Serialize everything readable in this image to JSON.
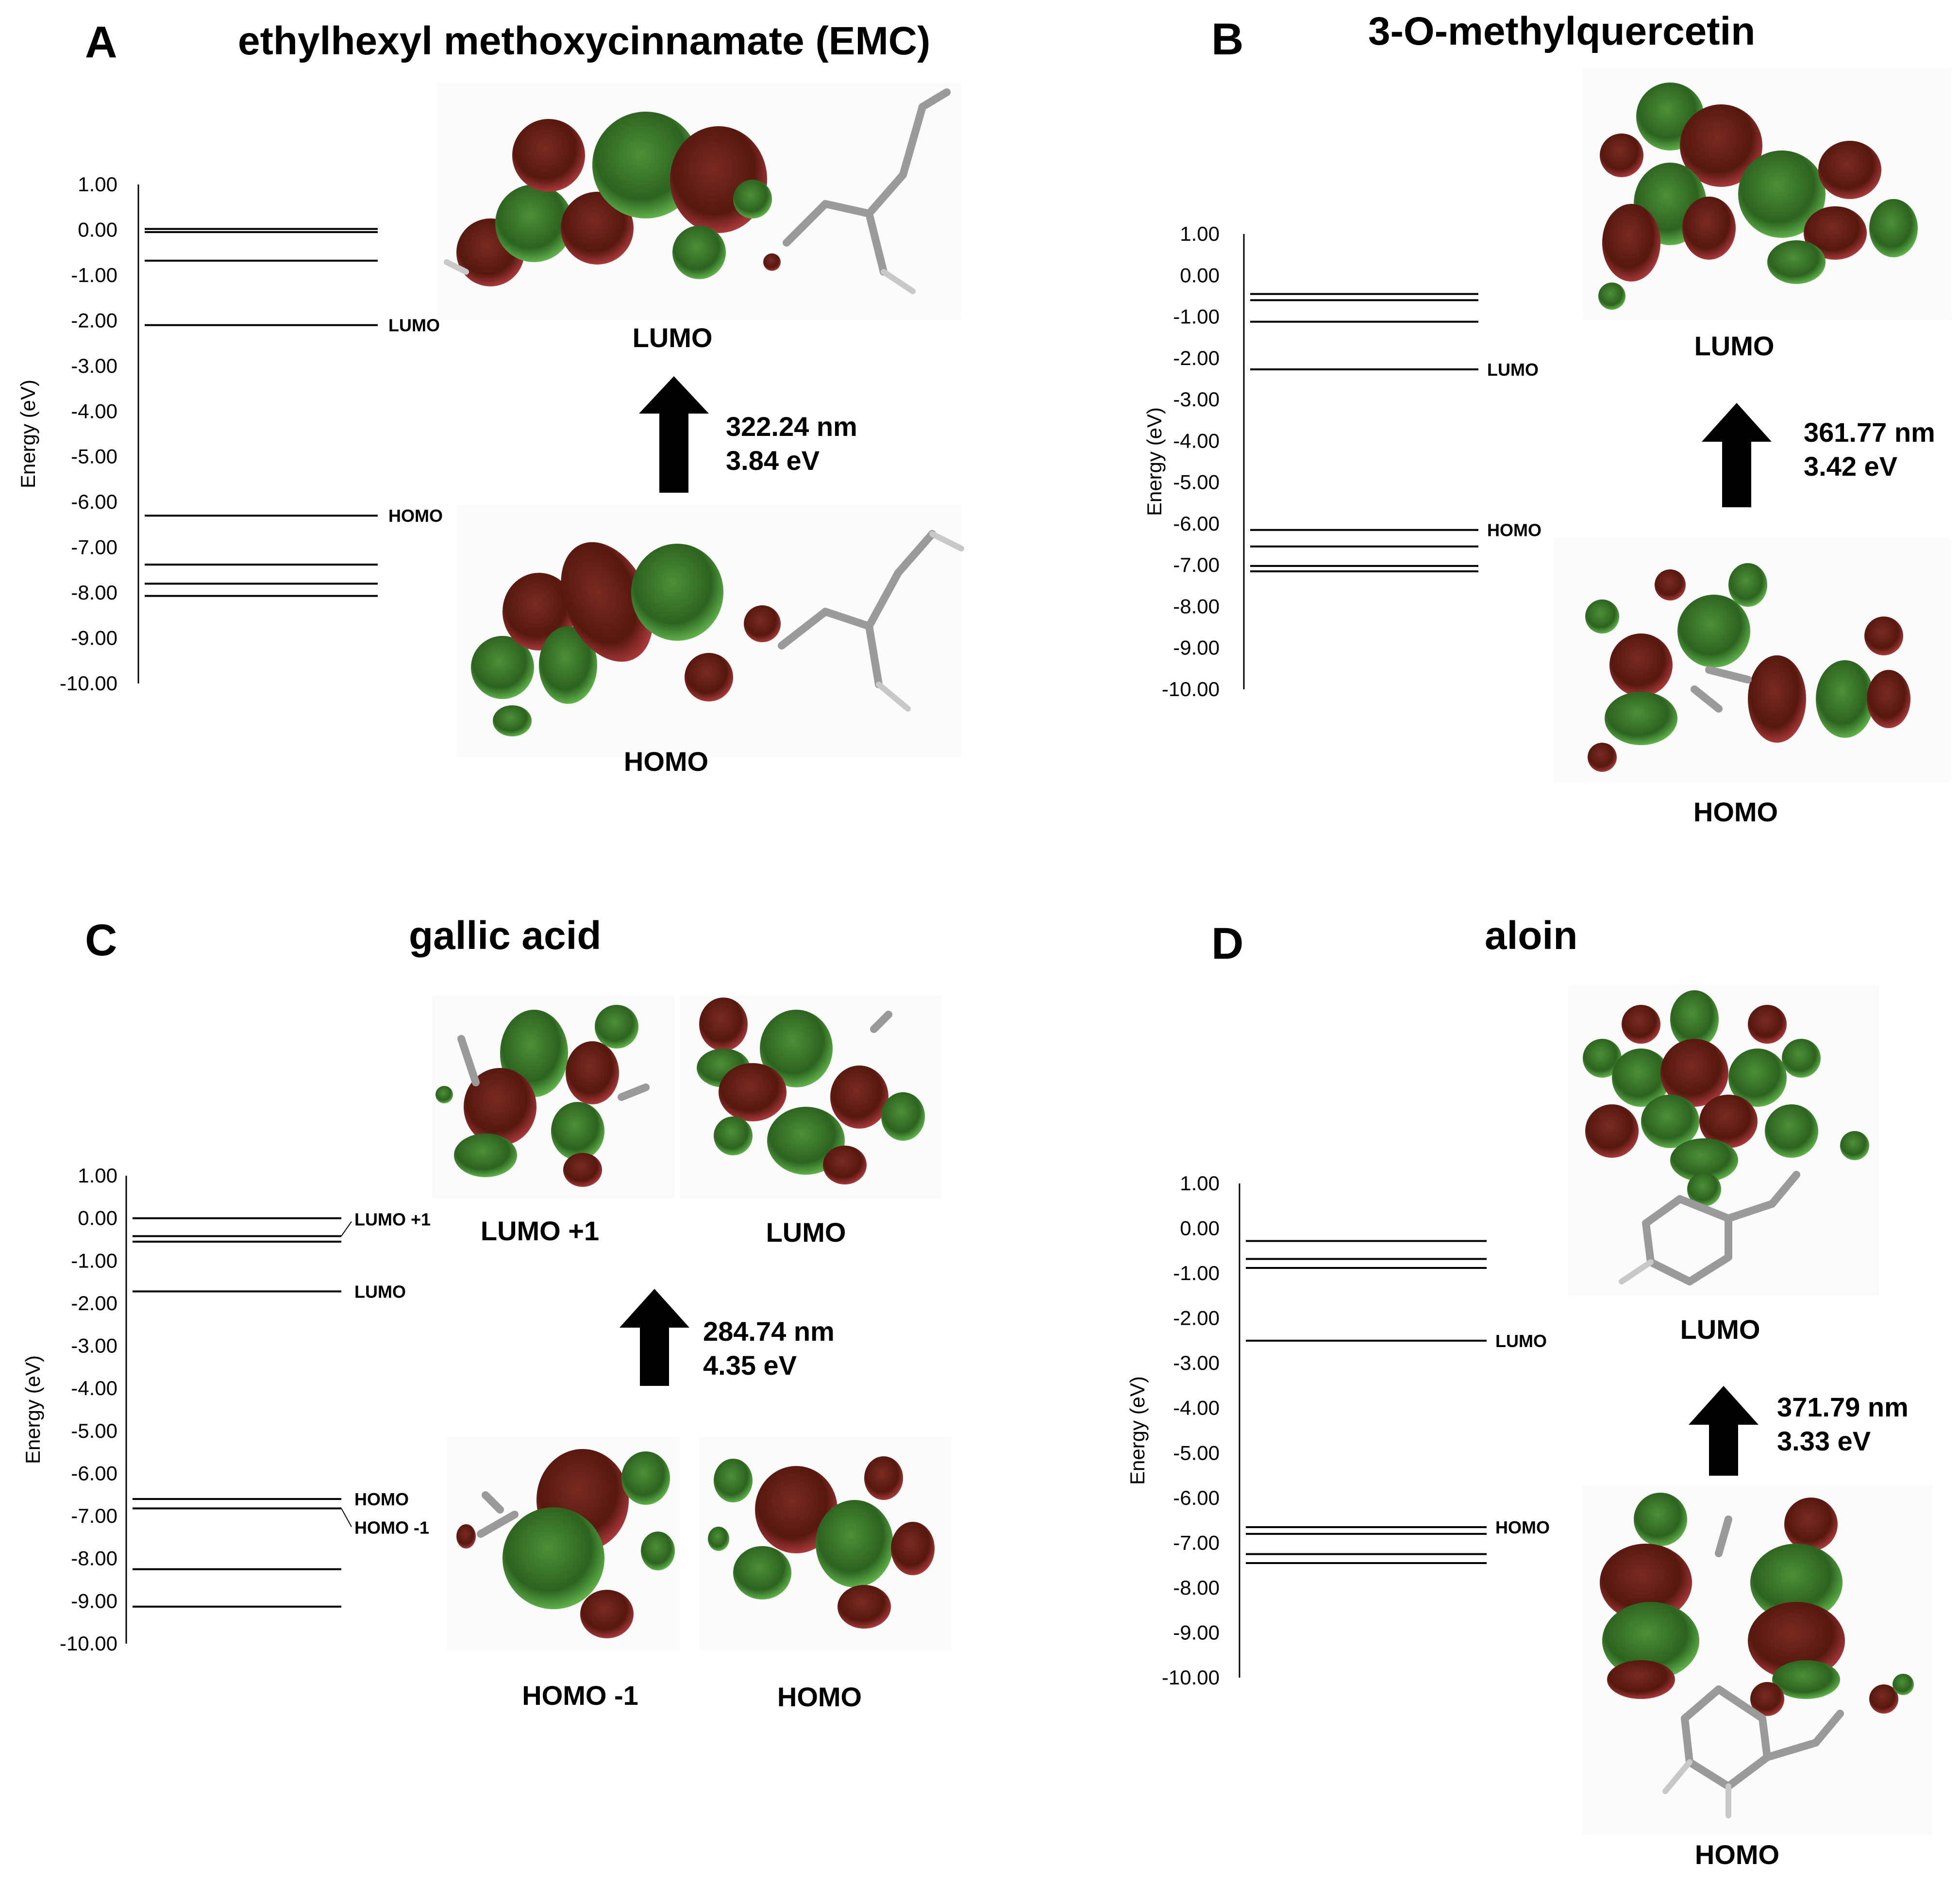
{
  "colors": {
    "lobe_green": "#2f6b22",
    "lobe_red": "#5a1a14",
    "green_glow": "#5fb04a",
    "red_glow": "#a8383a",
    "arrow": "#000000"
  },
  "axis": {
    "ylabel": "Energy (eV)",
    "ylim": [
      -10,
      1
    ],
    "ticks": [
      1,
      0,
      -1,
      -2,
      -3,
      -4,
      -5,
      -6,
      -7,
      -8,
      -9,
      -10
    ],
    "tick_labels": [
      "1.00",
      "0.00",
      "-1.00",
      "-2.00",
      "-3.00",
      "-4.00",
      "-5.00",
      "-6.00",
      "-7.00",
      "-8.00",
      "-9.00",
      "-10.00"
    ]
  },
  "panels": [
    {
      "letter": "A",
      "title": "ethylhexyl methoxycinnamate (EMC)",
      "levels": [
        0.02,
        -0.05,
        -0.68,
        -2.1,
        -6.3,
        -7.38,
        -7.8,
        -8.07
      ],
      "level_labels": [
        {
          "level_index": 3,
          "text": "LUMO"
        },
        {
          "level_index": 4,
          "text": "HOMO"
        }
      ],
      "orbital_captions": [
        "LUMO",
        "HOMO"
      ],
      "transition": {
        "wavelength": "322.24 nm",
        "energy": "3.84 eV"
      }
    },
    {
      "letter": "B",
      "title": "3-O-methylquercetin",
      "levels": [
        -0.45,
        -0.6,
        -1.12,
        -2.27,
        -6.15,
        -6.55,
        -7.02,
        -7.15
      ],
      "level_labels": [
        {
          "level_index": 3,
          "text": "LUMO"
        },
        {
          "level_index": 4,
          "text": "HOMO"
        }
      ],
      "orbital_captions": [
        "LUMO",
        "HOMO"
      ],
      "transition": {
        "wavelength": "361.77 nm",
        "energy": "3.42 eV"
      }
    },
    {
      "letter": "C",
      "title": "gallic acid",
      "levels": [
        0.0,
        -0.42,
        -0.55,
        -1.72,
        -6.6,
        -6.82,
        -8.25,
        -9.13
      ],
      "level_labels": [
        {
          "level_index": 1,
          "text": "LUMO +1"
        },
        {
          "level_index": 3,
          "text": "LUMO"
        },
        {
          "level_index": 4,
          "text": "HOMO"
        },
        {
          "level_index": 5,
          "text": "HOMO -1"
        }
      ],
      "orbital_captions": [
        "LUMO +1",
        "LUMO",
        "HOMO -1",
        "HOMO"
      ],
      "transition": {
        "wavelength": "284.74 nm",
        "energy": "4.35 eV"
      }
    },
    {
      "letter": "D",
      "title": "aloin",
      "levels": [
        -0.28,
        -0.68,
        -0.88,
        -2.5,
        -6.65,
        -6.8,
        -7.25,
        -7.45
      ],
      "level_labels": [
        {
          "level_index": 3,
          "text": "LUMO"
        },
        {
          "level_index": 4,
          "text": "HOMO"
        }
      ],
      "orbital_captions": [
        "LUMO",
        "HOMO"
      ],
      "transition": {
        "wavelength": "371.79 nm",
        "energy": "3.33 eV"
      }
    }
  ]
}
